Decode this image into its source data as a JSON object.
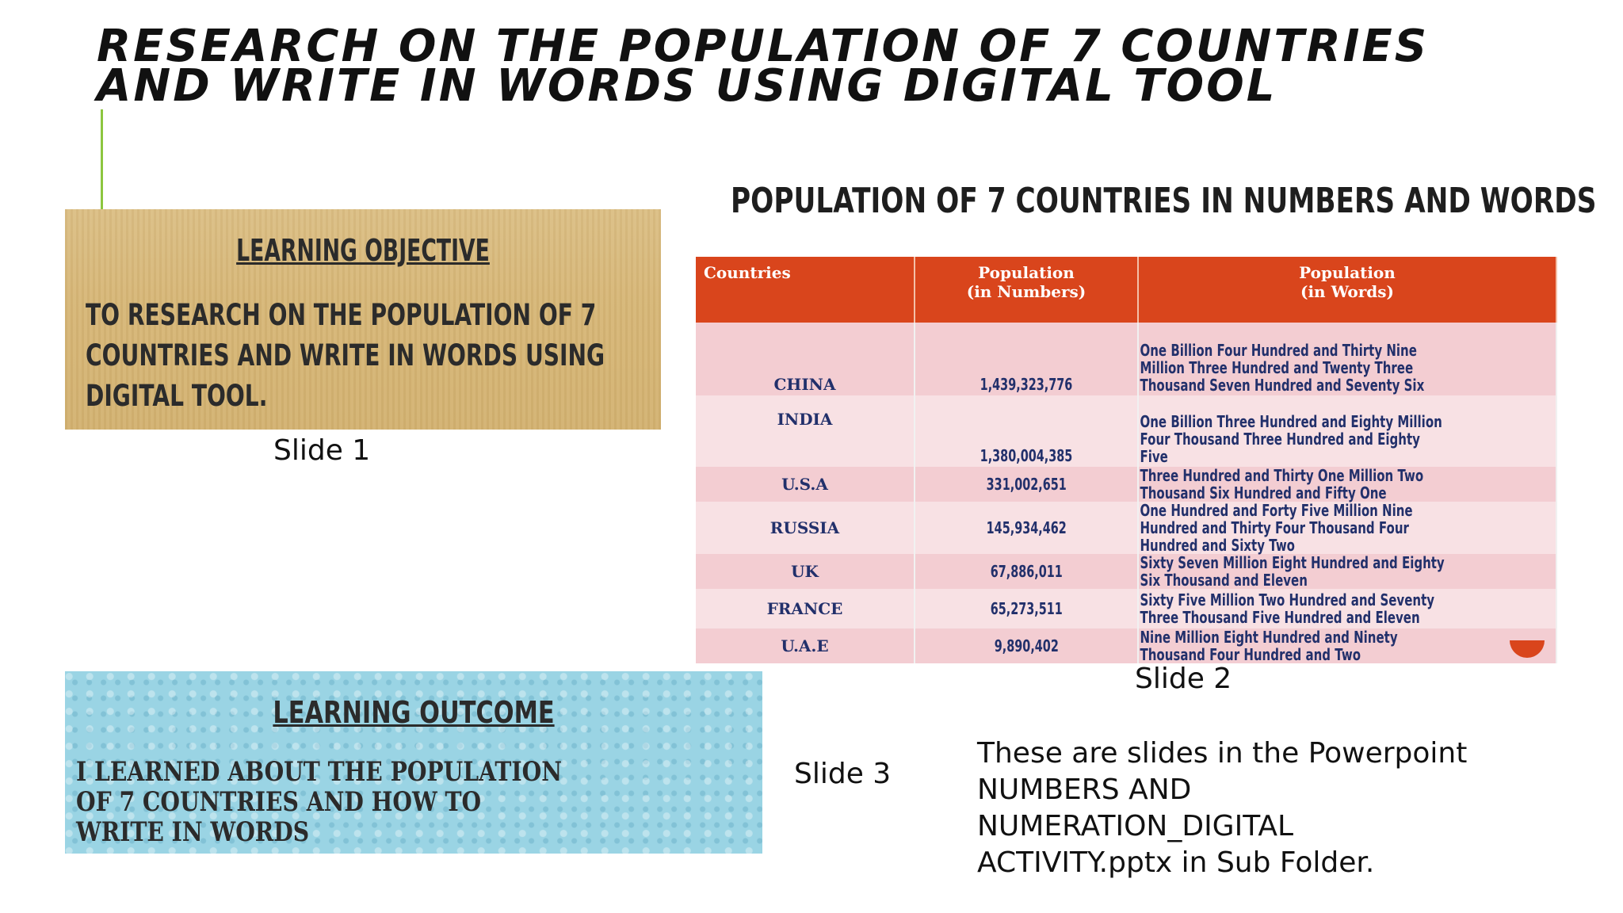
{
  "title": {
    "line1": "RESEARCH ON THE POPULATION OF 7 COUNTRIES",
    "line2": "AND WRITE IN WORDS USING DIGITAL TOOL"
  },
  "slide1": {
    "heading": "LEARNING OBJECTIVE",
    "body_lines": [
      "TO RESEARCH ON THE POPULATION OF 7",
      "COUNTRIES AND WRITE IN WORDS USING",
      "DIGITAL TOOL."
    ],
    "caption": "Slide 1",
    "background_color": "#d7b778"
  },
  "slide2": {
    "heading": "POPULATION OF 7 COUNTRIES IN NUMBERS AND WORDS",
    "header_color": "#d9451c",
    "columns": [
      {
        "line1": "Countries",
        "line2": ""
      },
      {
        "line1": "Population",
        "line2": "(in Numbers)"
      },
      {
        "line1": "Population",
        "line2": "(in Words)"
      }
    ],
    "rows": [
      {
        "country": "CHINA",
        "number": "1,439,323,776",
        "words": "One Billion Four Hundred and Thirty Nine Million Three Hundred and Twenty Three Thousand Seven Hundred and Seventy Six"
      },
      {
        "country": "INDIA",
        "number": "1,380,004,385",
        "words": "One Billion Three Hundred and Eighty Million  Four Thousand Three Hundred and Eighty Five"
      },
      {
        "country": "U.S.A",
        "number": "331,002,651",
        "words": "Three Hundred and Thirty One Million  Two Thousand Six Hundred and Fifty One"
      },
      {
        "country": "RUSSIA",
        "number": "145,934,462",
        "words": "One Hundred and Forty Five Million Nine Hundred and Thirty Four Thousand Four Hundred and Sixty Two"
      },
      {
        "country": "UK",
        "number": "67,886,011",
        "words": "Sixty Seven Million Eight Hundred and Eighty Six Thousand and Eleven"
      },
      {
        "country": "FRANCE",
        "number": "65,273,511",
        "words": "Sixty Five Million Two Hundred and Seventy Three Thousand Five Hundred and Eleven"
      },
      {
        "country": "U.A.E",
        "number": "9,890,402",
        "words": "Nine Million Eight Hundred and Ninety Thousand Four Hundred and Two"
      }
    ],
    "caption": "Slide 2"
  },
  "slide3": {
    "heading": "LEARNING OUTCOME",
    "body_lines": [
      "I  LEARNED ABOUT THE POPULATION",
      "OF 7 COUNTRIES AND  HOW TO",
      "WRITE IN WORDS"
    ],
    "caption": "Slide 3",
    "background_color": "#9ad4e4"
  },
  "note": {
    "lines": [
      "These are slides in the  Powerpoint",
      "NUMBERS AND",
      "NUMERATION_DIGITAL",
      "ACTIVITY.pptx in Sub Folder."
    ]
  },
  "accent_color": "#8dc63f"
}
